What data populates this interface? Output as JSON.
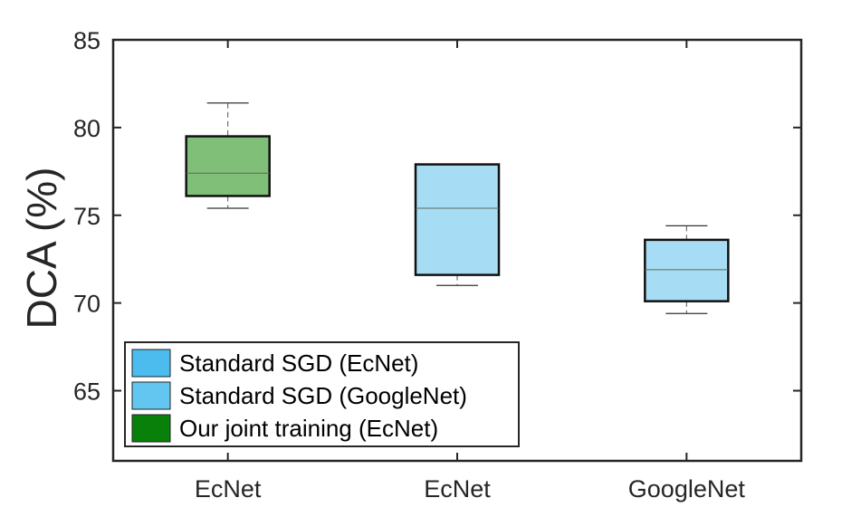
{
  "chart_data": {
    "type": "box",
    "title": "",
    "xlabel": "",
    "ylabel": "DCA (%)",
    "ylim": [
      61,
      85
    ],
    "yticks": [
      65,
      70,
      75,
      80,
      85
    ],
    "categories": [
      "EcNet",
      "EcNet",
      "GoogleNet"
    ],
    "boxes": [
      {
        "category": "EcNet",
        "series": "Our joint training (EcNet)",
        "min": 75.4,
        "q1": 76.1,
        "median": 77.4,
        "q3": 79.5,
        "max": 81.4,
        "color": "#7fbf77"
      },
      {
        "category": "EcNet",
        "series": "Standard SGD (EcNet)",
        "min": 71.0,
        "q1": 71.6,
        "median": 75.4,
        "q3": 77.9,
        "max": 77.9,
        "color": "#a7ddf4"
      },
      {
        "category": "GoogleNet",
        "series": "Standard SGD (GoogleNet)",
        "min": 69.4,
        "q1": 70.1,
        "median": 71.9,
        "q3": 73.6,
        "max": 74.4,
        "color": "#a7ddf4"
      }
    ],
    "legend": {
      "placement": "bottom-left",
      "entries": [
        {
          "label": "Standard SGD (EcNet)",
          "color": "#4cbcee"
        },
        {
          "label": "Standard SGD (GoogleNet)",
          "color": "#63c6f1"
        },
        {
          "label": "Our joint training (EcNet)",
          "color": "#098009"
        }
      ]
    },
    "grid": false
  }
}
